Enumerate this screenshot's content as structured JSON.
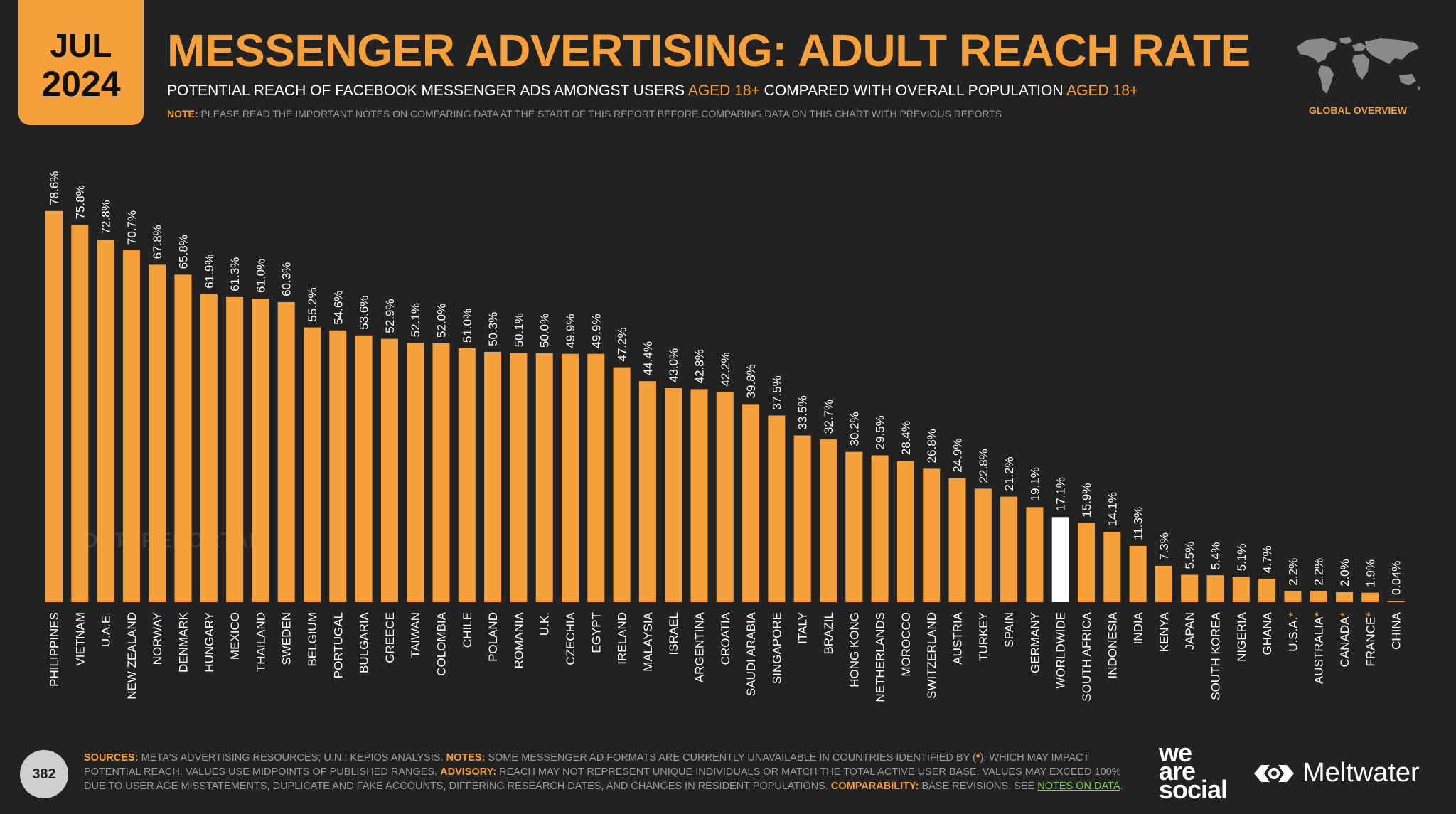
{
  "header": {
    "month": "JUL",
    "year": "2024",
    "title": "MESSENGER ADVERTISING: ADULT REACH RATE",
    "subtitle_a": "POTENTIAL REACH OF FACEBOOK MESSENGER ADS AMONGST USERS ",
    "subtitle_b": "AGED 18+",
    "subtitle_c": " COMPARED WITH OVERALL POPULATION ",
    "subtitle_d": "AGED 18+",
    "note_label": "NOTE:",
    "note_text": " PLEASE READ THE IMPORTANT NOTES ON COMPARING DATA AT THE START OF THIS REPORT BEFORE COMPARING DATA ON THIS CHART WITH PREVIOUS REPORTS",
    "overview_label": "GLOBAL OVERVIEW"
  },
  "watermark": "DATAREPORTAL",
  "footer": {
    "page_number": "382",
    "sources_label": "SOURCES:",
    "sources_text": " META'S ADVERTISING RESOURCES; U.N.; KEPIOS ANALYSIS. ",
    "notes_label": "NOTES:",
    "notes_text_1": " SOME MESSENGER AD FORMATS ARE CURRENTLY UNAVAILABLE IN COUNTRIES IDENTIFIED BY (",
    "notes_star": "*",
    "notes_text_2": "), WHICH MAY IMPACT POTENTIAL REACH. VALUES USE MIDPOINTS OF PUBLISHED RANGES. ",
    "advisory_label": "ADVISORY:",
    "advisory_text": " REACH MAY NOT REPRESENT UNIQUE INDIVIDUALS OR MATCH THE TOTAL ACTIVE USER BASE. VALUES MAY EXCEED 100% DUE TO USER AGE MISSTATEMENTS, DUPLICATE AND FAKE ACCOUNTS, DIFFERING RESEARCH DATES, AND CHANGES IN RESIDENT POPULATIONS. ",
    "comparability_label": "COMPARABILITY:",
    "comparability_text": " BASE REVISIONS. SEE ",
    "notes_link": "NOTES ON DATA",
    "notes_end": "."
  },
  "brands": {
    "was_line1": "we",
    "was_line2": "are",
    "was_line3": "social",
    "meltwater": "Meltwater"
  },
  "colors": {
    "accent": "#F5A03A",
    "highlight_bar": "#FFFFFF",
    "background": "#222222"
  },
  "icons": [
    "world-map-icon",
    "meltwater-logo-icon"
  ],
  "chart_data": {
    "type": "bar",
    "title": "",
    "xlabel": "",
    "ylabel": "",
    "ylim": [
      0,
      80
    ],
    "highlight": "WORLDWIDE",
    "categories": [
      "PHILIPPINES",
      "VIETNAM",
      "U.A.E.",
      "NEW ZEALAND",
      "NORWAY",
      "DENMARK",
      "HUNGARY",
      "MEXICO",
      "THAILAND",
      "SWEDEN",
      "BELGIUM",
      "PORTUGAL",
      "BULGARIA",
      "GREECE",
      "TAIWAN",
      "COLOMBIA",
      "CHILE",
      "POLAND",
      "ROMANIA",
      "U.K.",
      "CZECHIA",
      "EGYPT",
      "IRELAND",
      "MALAYSIA",
      "ISRAEL",
      "ARGENTINA",
      "CROATIA",
      "SAUDI ARABIA",
      "SINGAPORE",
      "ITALY",
      "BRAZIL",
      "HONG KONG",
      "NETHERLANDS",
      "MOROCCO",
      "SWITZERLAND",
      "AUSTRIA",
      "TURKEY",
      "SPAIN",
      "GERMANY",
      "WORLDWIDE",
      "SOUTH AFRICA",
      "INDONESIA",
      "INDIA",
      "KENYA",
      "JAPAN",
      "SOUTH KOREA",
      "NIGERIA",
      "GHANA",
      "U.S.A.",
      "AUSTRALIA",
      "CANADA",
      "FRANCE",
      "CHINA"
    ],
    "starred": [
      false,
      false,
      false,
      false,
      false,
      false,
      false,
      false,
      false,
      false,
      false,
      false,
      false,
      false,
      false,
      false,
      false,
      false,
      false,
      false,
      false,
      false,
      false,
      false,
      false,
      false,
      false,
      false,
      false,
      false,
      false,
      false,
      false,
      false,
      false,
      false,
      false,
      false,
      false,
      false,
      false,
      false,
      false,
      false,
      false,
      false,
      false,
      false,
      true,
      true,
      true,
      true,
      false
    ],
    "values": [
      78.6,
      75.8,
      72.8,
      70.7,
      67.8,
      65.8,
      61.9,
      61.3,
      61.0,
      60.3,
      55.2,
      54.6,
      53.6,
      52.9,
      52.1,
      52.0,
      51.0,
      50.3,
      50.1,
      50.0,
      49.9,
      49.9,
      47.2,
      44.4,
      43.0,
      42.8,
      42.2,
      39.8,
      37.5,
      33.5,
      32.7,
      30.2,
      29.5,
      28.4,
      26.8,
      24.9,
      22.8,
      21.2,
      19.1,
      17.1,
      15.9,
      14.1,
      11.3,
      7.3,
      5.5,
      5.4,
      5.1,
      4.7,
      2.2,
      2.2,
      2.0,
      1.9,
      0.04
    ],
    "labels": [
      "78.6%",
      "75.8%",
      "72.8%",
      "70.7%",
      "67.8%",
      "65.8%",
      "61.9%",
      "61.3%",
      "61.0%",
      "60.3%",
      "55.2%",
      "54.6%",
      "53.6%",
      "52.9%",
      "52.1%",
      "52.0%",
      "51.0%",
      "50.3%",
      "50.1%",
      "50.0%",
      "49.9%",
      "49.9%",
      "47.2%",
      "44.4%",
      "43.0%",
      "42.8%",
      "42.2%",
      "39.8%",
      "37.5%",
      "33.5%",
      "32.7%",
      "30.2%",
      "29.5%",
      "28.4%",
      "26.8%",
      "24.9%",
      "22.8%",
      "21.2%",
      "19.1%",
      "17.1%",
      "15.9%",
      "14.1%",
      "11.3%",
      "7.3%",
      "5.5%",
      "5.4%",
      "5.1%",
      "4.7%",
      "2.2%",
      "2.2%",
      "2.0%",
      "1.9%",
      "0.04%"
    ]
  }
}
